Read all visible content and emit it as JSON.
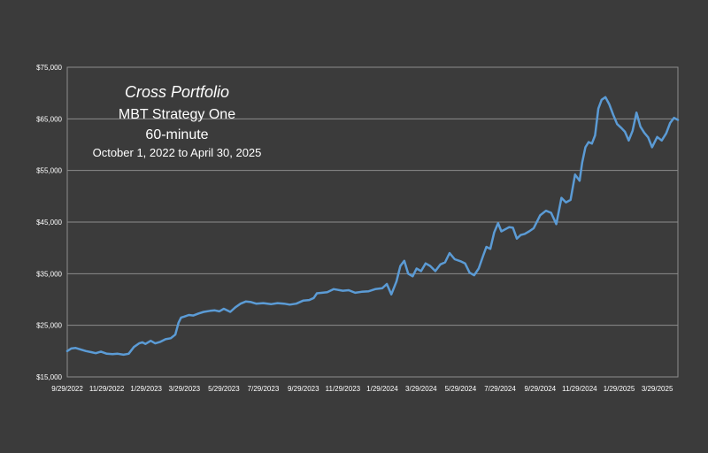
{
  "chart_data": {
    "type": "line",
    "title_lines": [
      "Cross Portfolio",
      "MBT Strategy One",
      "60-minute",
      "October 1,  2022 to April 30, 2025"
    ],
    "xlabel": "",
    "ylabel": "",
    "ylim": [
      15000,
      75000
    ],
    "y_ticks": [
      15000,
      25000,
      35000,
      45000,
      55000,
      65000,
      75000
    ],
    "y_tick_labels": [
      "$15,000",
      "$25,000",
      "$35,000",
      "$45,000",
      "$55,000",
      "$65,000",
      "$75,000"
    ],
    "x_range": [
      "2022-09-29",
      "2025-04-30"
    ],
    "x_ticks": [
      "2022-09-29",
      "2022-11-29",
      "2023-01-29",
      "2023-03-29",
      "2023-05-29",
      "2023-07-29",
      "2023-09-29",
      "2023-11-29",
      "2024-01-29",
      "2024-03-29",
      "2024-05-29",
      "2024-07-29",
      "2024-09-29",
      "2024-11-29",
      "2025-01-29",
      "2025-03-29"
    ],
    "x_tick_labels": [
      "9/29/2022",
      "11/29/2022",
      "1/29/2023",
      "3/29/2023",
      "5/29/2023",
      "7/29/2023",
      "9/29/2023",
      "11/29/2023",
      "1/29/2024",
      "3/29/2024",
      "5/29/2024",
      "7/29/2024",
      "9/29/2024",
      "11/29/2024",
      "1/29/2025",
      "3/29/2025"
    ],
    "grid": true,
    "line_color": "#5b9bd5",
    "series": [
      {
        "x": [
          "2022-09-29",
          "2022-10-05",
          "2022-10-12",
          "2022-10-20",
          "2022-10-28",
          "2022-11-05",
          "2022-11-12",
          "2022-11-20",
          "2022-11-29",
          "2022-12-08",
          "2022-12-16",
          "2022-12-25",
          "2023-01-02",
          "2023-01-10",
          "2023-01-18",
          "2023-01-23",
          "2023-01-28",
          "2023-02-05",
          "2023-02-12",
          "2023-02-20",
          "2023-02-28",
          "2023-03-08",
          "2023-03-15",
          "2023-03-20",
          "2023-03-24",
          "2023-03-29",
          "2023-04-05",
          "2023-04-12",
          "2023-04-20",
          "2023-04-28",
          "2023-05-08",
          "2023-05-15",
          "2023-05-22",
          "2023-05-29",
          "2023-06-08",
          "2023-06-16",
          "2023-06-24",
          "2023-07-02",
          "2023-07-10",
          "2023-07-18",
          "2023-07-29",
          "2023-08-10",
          "2023-08-20",
          "2023-08-30",
          "2023-09-08",
          "2023-09-18",
          "2023-09-29",
          "2023-10-08",
          "2023-10-15",
          "2023-10-20",
          "2023-10-28",
          "2023-11-05",
          "2023-11-15",
          "2023-11-29",
          "2023-12-08",
          "2023-12-18",
          "2023-12-28",
          "2024-01-08",
          "2024-01-18",
          "2024-01-29",
          "2024-02-05",
          "2024-02-12",
          "2024-02-20",
          "2024-02-26",
          "2024-03-03",
          "2024-03-09",
          "2024-03-16",
          "2024-03-22",
          "2024-03-29",
          "2024-04-05",
          "2024-04-12",
          "2024-04-20",
          "2024-04-28",
          "2024-05-05",
          "2024-05-12",
          "2024-05-20",
          "2024-05-29",
          "2024-06-05",
          "2024-06-12",
          "2024-06-19",
          "2024-06-26",
          "2024-07-03",
          "2024-07-08",
          "2024-07-14",
          "2024-07-20",
          "2024-07-26",
          "2024-07-31",
          "2024-08-06",
          "2024-08-12",
          "2024-08-18",
          "2024-08-24",
          "2024-08-30",
          "2024-09-05",
          "2024-09-12",
          "2024-09-19",
          "2024-09-29",
          "2024-10-08",
          "2024-10-16",
          "2024-10-24",
          "2024-11-01",
          "2024-11-08",
          "2024-11-15",
          "2024-11-22",
          "2024-11-29",
          "2024-12-03",
          "2024-12-08",
          "2024-12-13",
          "2024-12-18",
          "2024-12-23",
          "2024-12-28",
          "2025-01-02",
          "2025-01-08",
          "2025-01-14",
          "2025-01-20",
          "2025-01-26",
          "2025-02-01",
          "2025-02-07",
          "2025-02-13",
          "2025-02-19",
          "2025-02-25",
          "2025-03-03",
          "2025-03-09",
          "2025-03-15",
          "2025-03-21",
          "2025-03-29",
          "2025-04-05",
          "2025-04-12",
          "2025-04-18",
          "2025-04-24",
          "2025-04-30"
        ],
        "y": [
          20000,
          20500,
          20600,
          20300,
          20000,
          19800,
          19600,
          19900,
          19500,
          19400,
          19500,
          19300,
          19500,
          20800,
          21500,
          21700,
          21400,
          22000,
          21500,
          21800,
          22300,
          22500,
          23200,
          25500,
          26500,
          26700,
          27000,
          26900,
          27300,
          27600,
          27800,
          27900,
          27700,
          28200,
          27600,
          28500,
          29200,
          29600,
          29500,
          29200,
          29300,
          29100,
          29300,
          29200,
          29000,
          29200,
          29800,
          29900,
          30300,
          31200,
          31300,
          31400,
          32000,
          31700,
          31800,
          31300,
          31500,
          31600,
          32000,
          32200,
          33000,
          31000,
          33500,
          36500,
          37500,
          35000,
          34500,
          36000,
          35500,
          37000,
          36500,
          35500,
          36800,
          37200,
          39000,
          37800,
          37400,
          37000,
          35200,
          34700,
          36000,
          38500,
          40200,
          39800,
          43000,
          44800,
          43200,
          43600,
          44000,
          43900,
          41800,
          42500,
          42700,
          43200,
          43800,
          46300,
          47200,
          46800,
          44600,
          49700,
          48800,
          49300,
          54200,
          53000,
          56500,
          59500,
          60500,
          60200,
          61800,
          67000,
          68700,
          69200,
          67800,
          65800,
          64000,
          63300,
          62500,
          60800,
          62700,
          66200,
          63500,
          62300,
          61400,
          59500,
          61500,
          60800,
          62200,
          64200,
          65200,
          64800
        ]
      }
    ]
  }
}
